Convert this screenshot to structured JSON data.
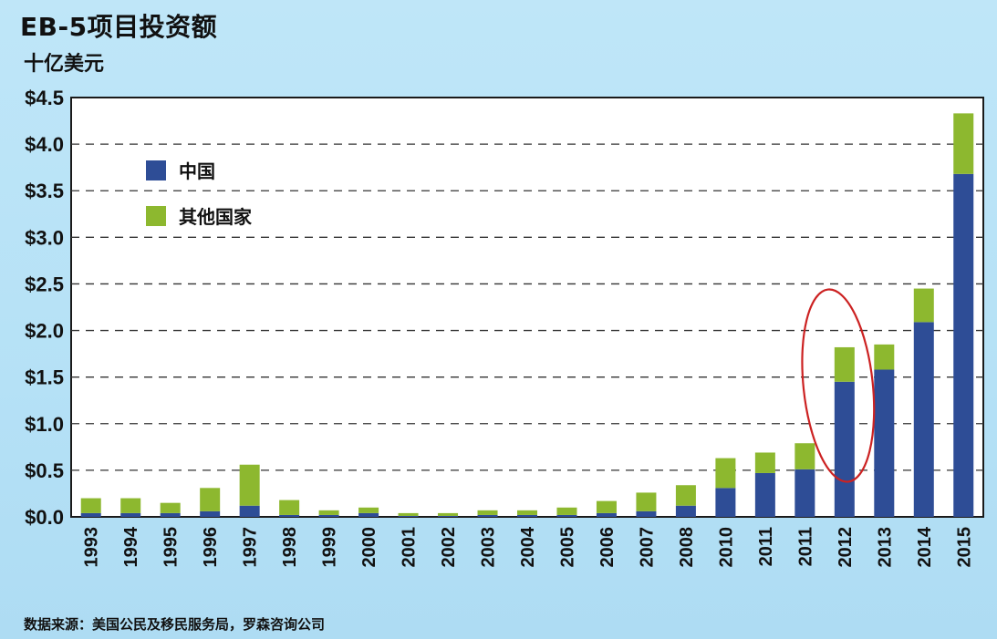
{
  "chart_data": {
    "type": "bar",
    "stacked": true,
    "title": "EB-5项目投资额",
    "subtitle": "十亿美元",
    "source": "数据来源：美国公民及移民服务局，罗森咨询公司",
    "ylim": [
      0,
      4.5
    ],
    "yticks": [
      "$0.0",
      "$0.5",
      "$1.0",
      "$1.5",
      "$2.0",
      "$2.5",
      "$3.0",
      "$3.5",
      "$4.0",
      "$4.5"
    ],
    "grid": true,
    "legend_position": "top-left",
    "categories": [
      "1993",
      "1994",
      "1995",
      "1996",
      "1997",
      "1998",
      "1999",
      "2000",
      "2001",
      "2002",
      "2003",
      "2004",
      "2005",
      "2006",
      "2007",
      "2008",
      "2010",
      "2011",
      "2011",
      "2012",
      "2013",
      "2014",
      "2015"
    ],
    "series": [
      {
        "name": "中国",
        "color": "#2e4d96",
        "values": [
          0.04,
          0.04,
          0.04,
          0.06,
          0.12,
          0.02,
          0.02,
          0.04,
          0.01,
          0.01,
          0.02,
          0.02,
          0.02,
          0.04,
          0.06,
          0.12,
          0.31,
          0.47,
          0.51,
          1.45,
          1.58,
          2.09,
          3.68
        ]
      },
      {
        "name": "其他国家",
        "color": "#8db82f",
        "values": [
          0.16,
          0.16,
          0.11,
          0.25,
          0.44,
          0.16,
          0.05,
          0.06,
          0.03,
          0.03,
          0.05,
          0.05,
          0.08,
          0.13,
          0.2,
          0.22,
          0.32,
          0.22,
          0.28,
          0.37,
          0.27,
          0.36,
          0.65
        ]
      }
    ],
    "highlight": {
      "category_index": 19,
      "shape": "ellipse",
      "color": "#cc2222"
    }
  }
}
